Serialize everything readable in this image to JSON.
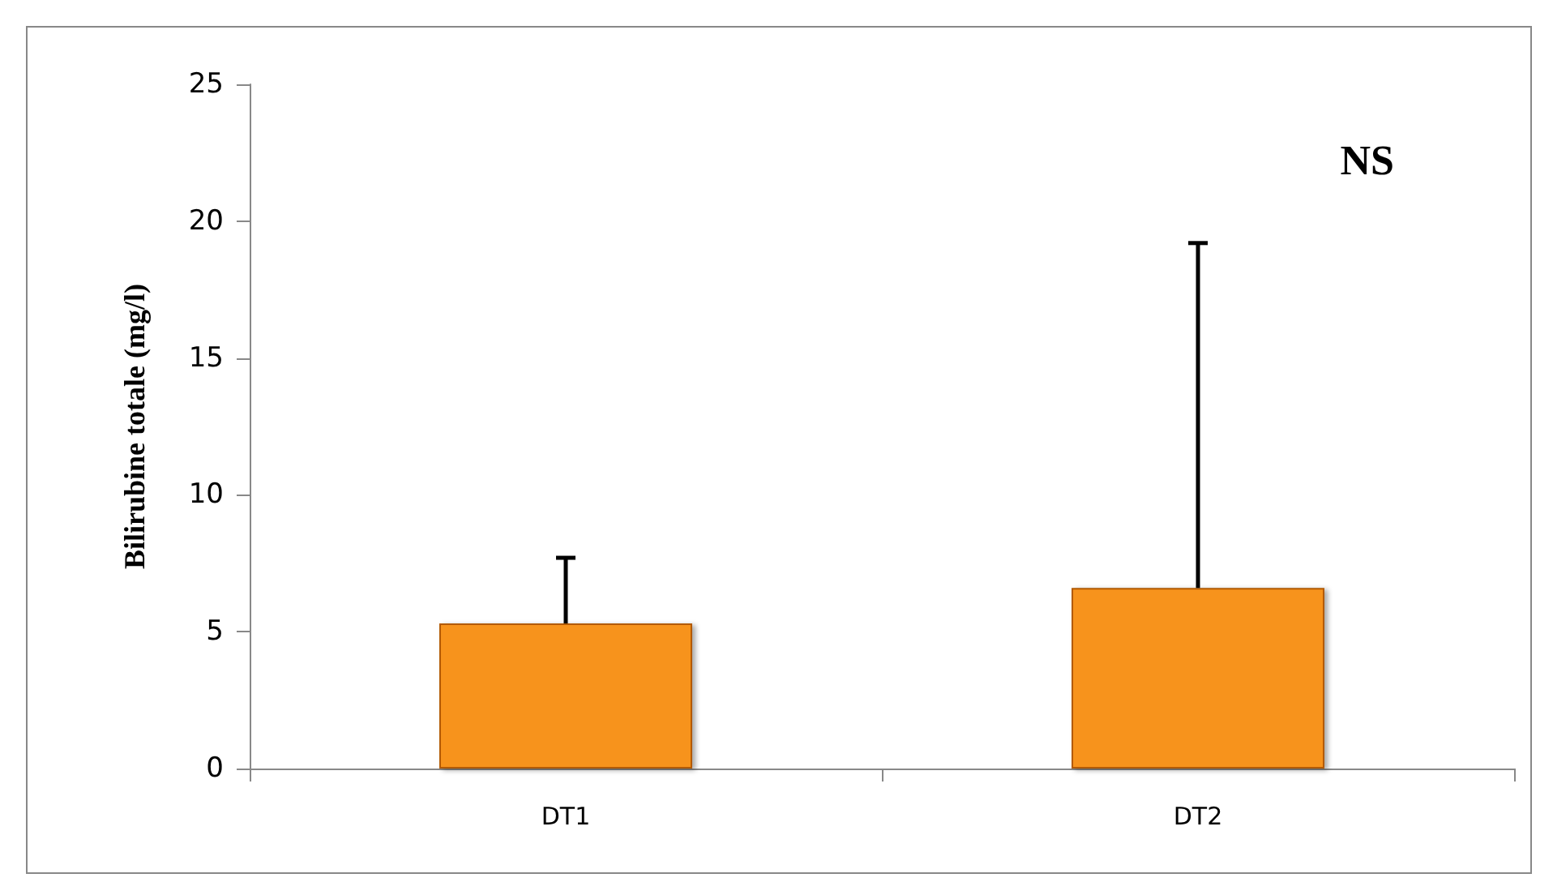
{
  "chart_data": {
    "type": "bar",
    "ylabel": "Bilirubine totale (mg/l)",
    "categories": [
      "DT1",
      "DT2"
    ],
    "values": [
      5.3,
      6.6
    ],
    "errors": [
      [
        5.3,
        7.7
      ],
      [
        6.6,
        19.2
      ]
    ],
    "color": "#f7931e",
    "ylim": [
      0,
      25
    ],
    "yticks": [
      0,
      5,
      10,
      15,
      20,
      25
    ],
    "grid": false,
    "annotations": [
      "NS"
    ]
  }
}
